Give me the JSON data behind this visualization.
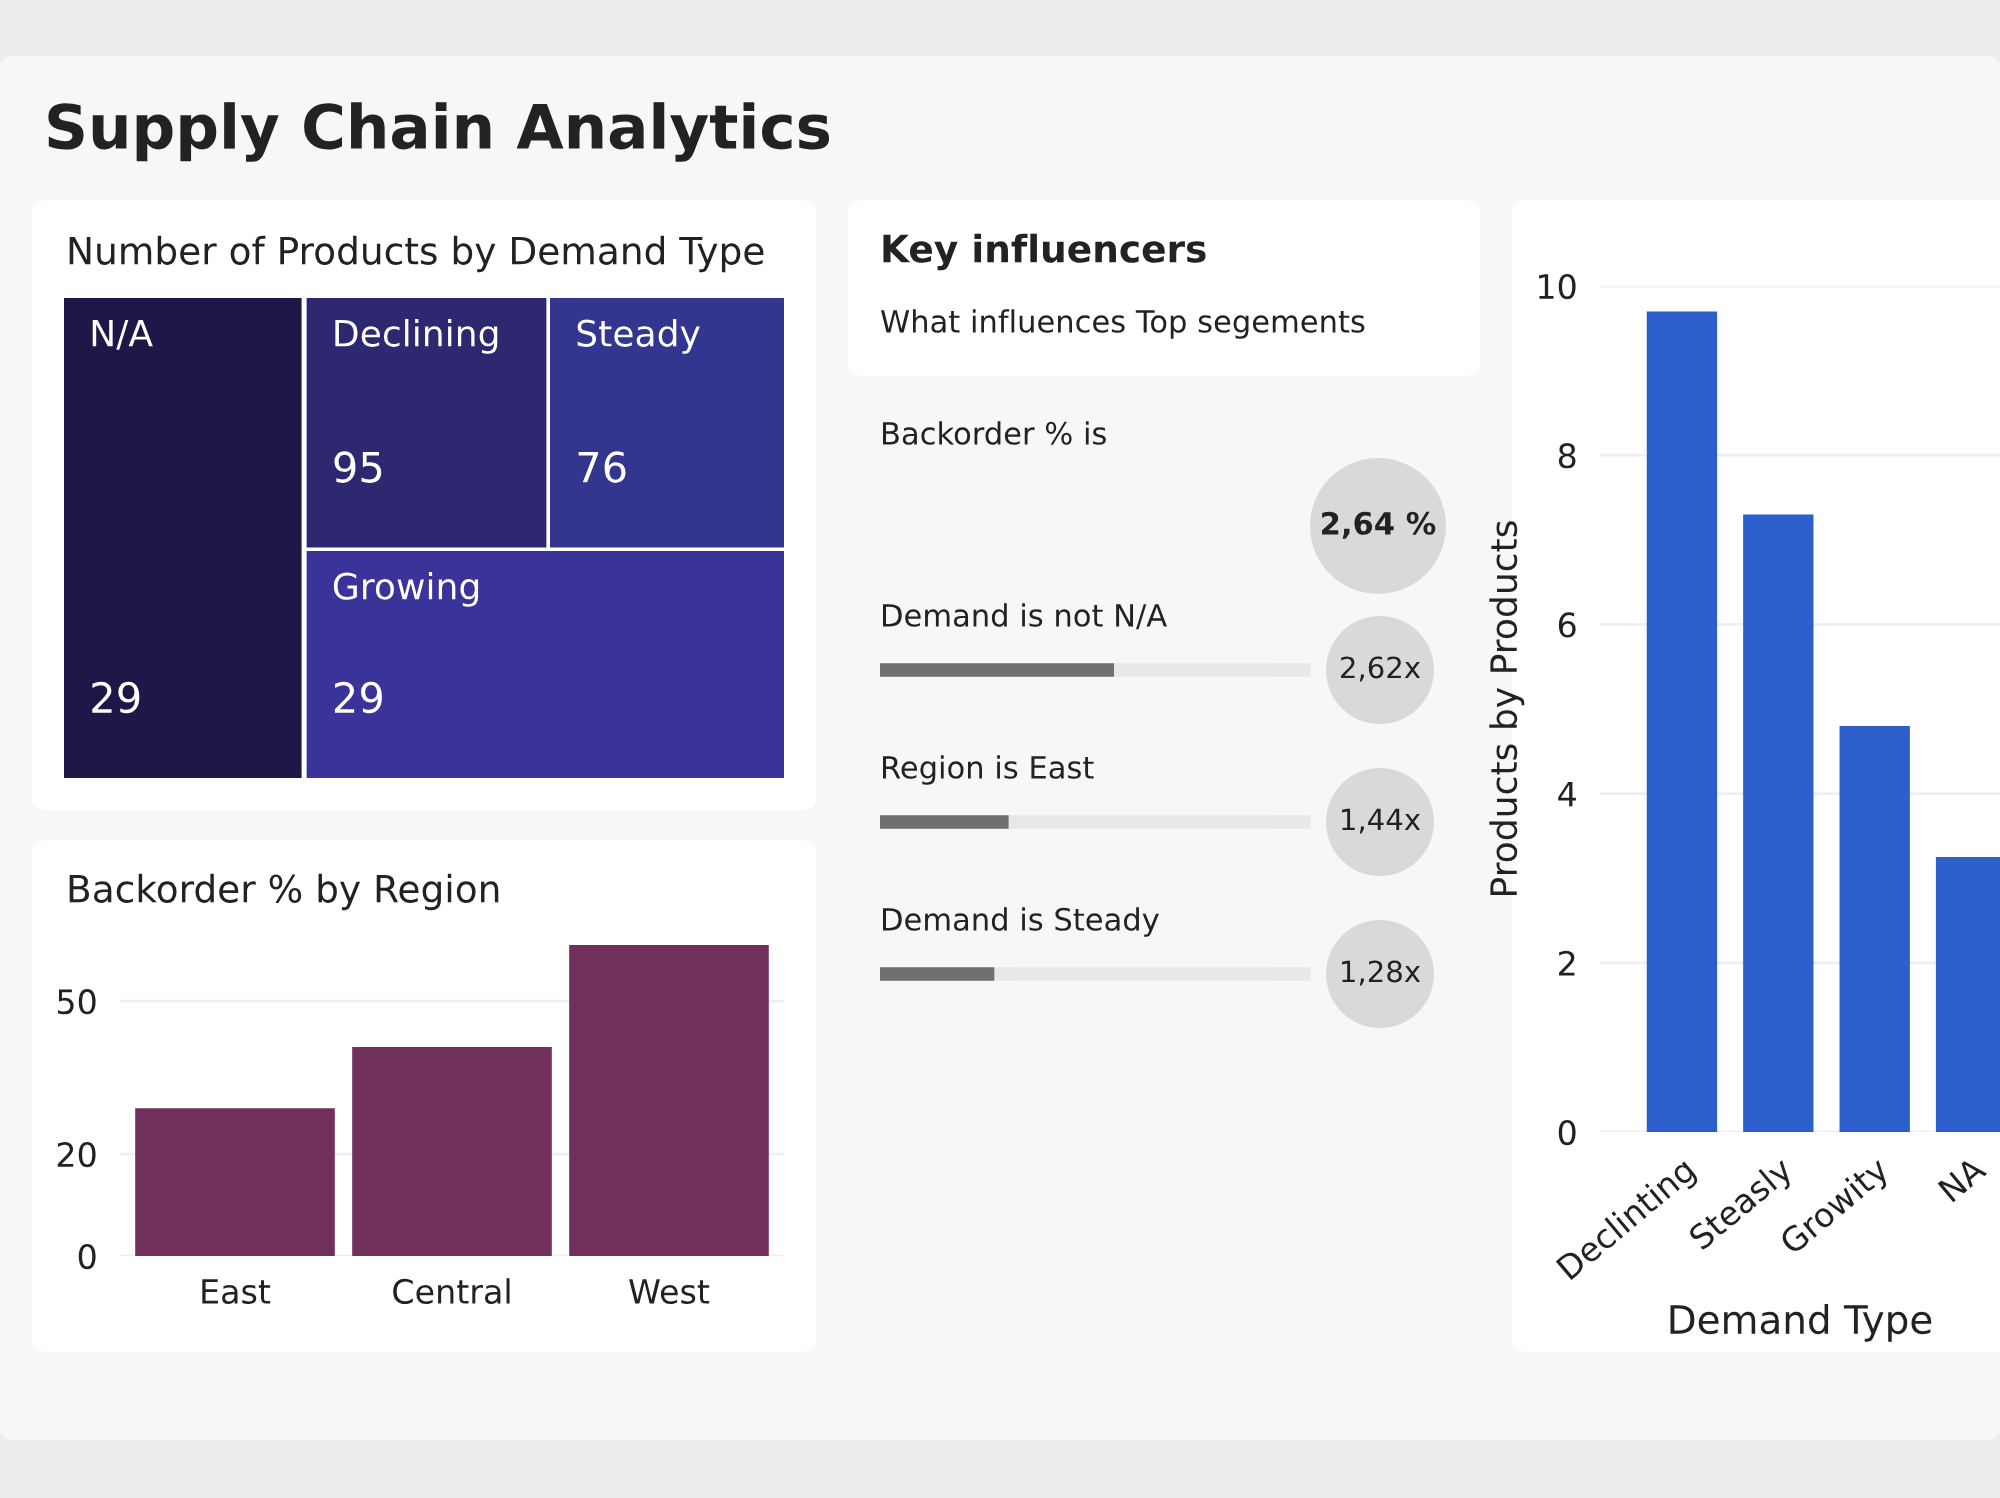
{
  "chart_data": [
    {
      "type": "other",
      "title": "Number of Products by Demand Type",
      "categories": [
        "N/A",
        "Declining",
        "Steady",
        "Growing"
      ],
      "values": [
        29,
        95,
        76,
        29
      ],
      "colors": [
        "#1e1848",
        "#2e2870",
        "#33358e",
        "#3a339a"
      ],
      "data_labels": true,
      "annotations": [
        "Supply Chain Analytics"
      ]
    },
    {
      "type": "bar",
      "title": "Backorder % by Region",
      "categories": [
        "East",
        "Central",
        "West"
      ],
      "values": [
        29,
        41,
        61
      ],
      "color": "#71305c",
      "ylim": [
        0,
        62
      ],
      "yticks": [
        0,
        20,
        50
      ],
      "grid": "y"
    },
    {
      "type": "bar",
      "orientation": "horizontal",
      "title": "Key influencers",
      "subtitle": "What influences Top segements",
      "categories": [
        "Demand is not N/A",
        "Region is East",
        "Demand is Steady"
      ],
      "values": [
        2.62,
        1.44,
        1.28
      ],
      "value_labels": [
        "2,62x",
        "1,44x",
        "1,28x"
      ],
      "color": "#707070",
      "annotations": [
        "Backorder % is",
        "2,64 %"
      ]
    },
    {
      "type": "bar",
      "ylabel": "Products by Products",
      "xlabel": "Demand Type",
      "categories": [
        "Declinting",
        "Steasly",
        "Growity",
        "NA"
      ],
      "values": [
        9.7,
        7.3,
        4.8,
        3.25
      ],
      "color": "#2d5fcc",
      "ylim": [
        0,
        10
      ],
      "yticks": [
        0,
        2,
        4,
        6,
        8,
        10
      ],
      "grid": "y"
    }
  ]
}
